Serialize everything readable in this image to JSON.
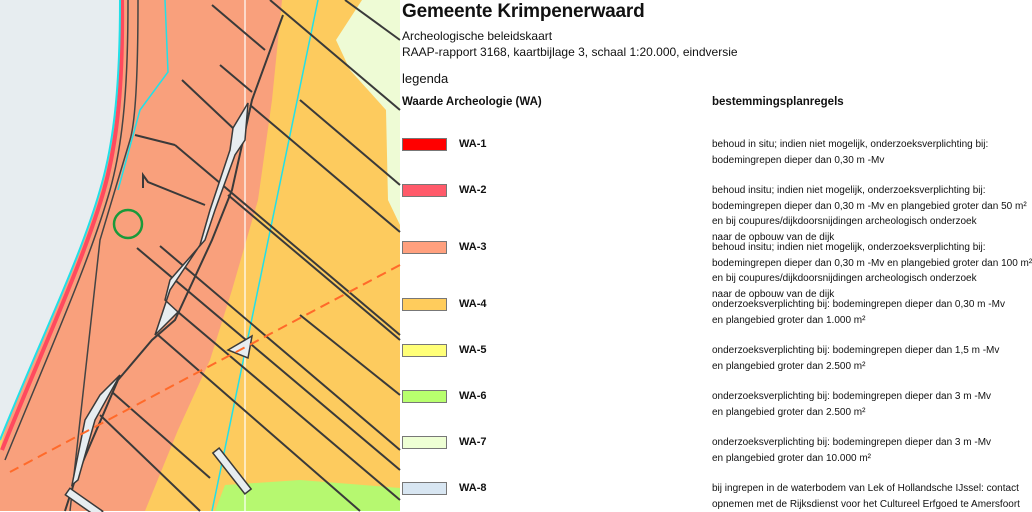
{
  "header": {
    "title": "Gemeente Krimpenerwaard",
    "subtitle": "Archeologische beleidskaart",
    "report": "RAAP-rapport 3168, kaartbijlage 3, schaal 1:20.000, eindversie"
  },
  "legend": {
    "label": "legenda",
    "col_left": "Waarde Archeologie (WA)",
    "col_right": "bestemmingsplanregels",
    "items": [
      {
        "code": "WA-1",
        "color": "#ff0000",
        "lines": [
          "behoud in situ; indien niet mogelijk, onderzoeksverplichting bij:",
          "bodemingrepen dieper dan 0,30 m -Mv"
        ]
      },
      {
        "code": "WA-2",
        "color": "#ff5a6a",
        "lines": [
          "behoud insitu; indien niet mogelijk, onderzoeksverplichting bij:",
          "bodemingrepen dieper dan 0,30 m -Mv en plangebied groter dan 50 m²",
          "en bij coupures/dijkdoorsnijdingen archeologisch onderzoek",
          "naar de opbouw van de dijk"
        ]
      },
      {
        "code": "WA-3",
        "color": "#ffa07e",
        "lines": [
          "behoud insitu; indien niet mogelijk, onderzoeksverplichting bij:",
          "bodemingrepen dieper dan 0,30 m -Mv en plangebied groter dan 100 m²",
          "en bij coupures/dijkdoorsnijdingen archeologisch onderzoek",
          "naar de opbouw van de dijk"
        ]
      },
      {
        "code": "WA-4",
        "color": "#ffcc5c",
        "lines": [
          "onderzoeksverplichting bij: bodemingrepen dieper dan 0,30 m -Mv",
          "en plangebied groter dan 1.000 m²"
        ]
      },
      {
        "code": "WA-5",
        "color": "#ffff78",
        "lines": [
          "onderzoeksverplichting bij: bodemingrepen dieper dan 1,5 m -Mv",
          "en plangebied groter dan 2.500 m²"
        ]
      },
      {
        "code": "WA-6",
        "color": "#b8ff6e",
        "lines": [
          "onderzoeksverplichting bij: bodemingrepen dieper dan 3 m -Mv",
          "en plangebied groter dan 2.500 m²"
        ]
      },
      {
        "code": "WA-7",
        "color": "#eeffd4",
        "lines": [
          "onderzoeksverplichting bij: bodemingrepen dieper dan 3 m -Mv",
          "en plangebied groter dan 10.000 m²"
        ]
      },
      {
        "code": "WA-8",
        "color": "#d8e6f2",
        "lines": [
          "bij ingrepen in de waterbodem van Lek of Hollandsche IJssel: contact",
          "opnemen met de Rijksdienst voor het Cultureel Erfgoed te Amersfoort"
        ]
      }
    ]
  },
  "map_colors": {
    "water": "#e7edf0",
    "wa3": "#f9a07c",
    "wa4": "#fdcb5e",
    "wa7": "#eefbd5",
    "wa6": "#b6f870",
    "marker": "#1a9a3a"
  }
}
